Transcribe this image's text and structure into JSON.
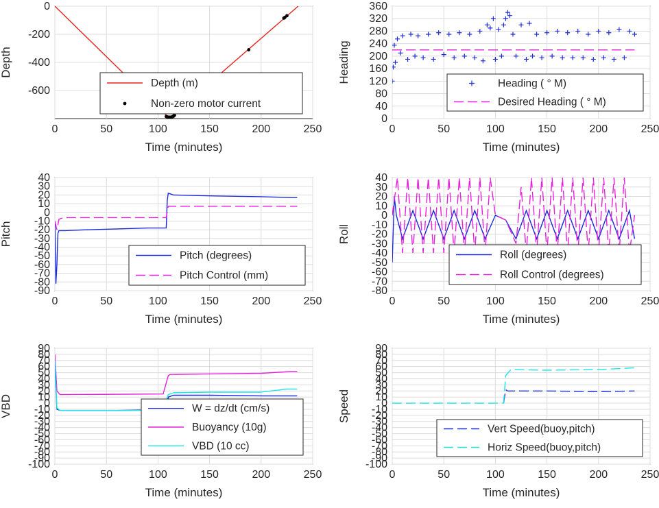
{
  "colors": {
    "red": "#e8251f",
    "blue": "#1b2bd9",
    "magenta": "#e620dc",
    "cyan": "#18e6e6",
    "black": "#000000"
  },
  "chart_data": [
    {
      "id": "depth",
      "type": "line",
      "ylabel": "Depth",
      "xlabel": "Time (minutes)",
      "xlim": [
        0,
        250
      ],
      "ylim": [
        -800,
        0
      ],
      "xticks": [
        0,
        50,
        100,
        150,
        200,
        250
      ],
      "yticks": [
        0,
        -200,
        -400,
        -600
      ],
      "grid": true,
      "legend_position": "bottom-right",
      "series": [
        {
          "name": "Depth (m)",
          "style": "line",
          "color": "red",
          "x": [
            0,
            110,
            112,
            236
          ],
          "y": [
            0,
            -790,
            -790,
            0
          ]
        },
        {
          "name": "Non-zero motor current",
          "style": "dots",
          "color": "black",
          "x": [
            108,
            109,
            110,
            111,
            112,
            113,
            114,
            115,
            116,
            188,
            222,
            223,
            225
          ],
          "y": [
            -785,
            -788,
            -790,
            -790,
            -790,
            -789,
            -787,
            -783,
            -777,
            -310,
            -85,
            -80,
            -68
          ]
        }
      ]
    },
    {
      "id": "heading",
      "type": "scatter",
      "ylabel": "Heading",
      "xlabel": "Time (minutes)",
      "xlim": [
        0,
        250
      ],
      "ylim": [
        0,
        360
      ],
      "xticks": [
        0,
        50,
        100,
        150,
        200,
        250
      ],
      "yticks": [
        0,
        40,
        80,
        120,
        160,
        200,
        240,
        280,
        320,
        360
      ],
      "grid": true,
      "legend_position": "bottom-right",
      "series": [
        {
          "name": "Heading (  ° M)",
          "style": "plus",
          "color": "blue",
          "x": [
            0,
            1,
            2,
            3,
            5,
            8,
            10,
            15,
            18,
            22,
            25,
            30,
            35,
            40,
            45,
            50,
            55,
            60,
            65,
            70,
            75,
            80,
            85,
            88,
            92,
            95,
            98,
            100,
            103,
            106,
            108,
            110,
            112,
            114,
            117,
            120,
            125,
            130,
            133,
            136,
            140,
            145,
            150,
            155,
            160,
            165,
            170,
            175,
            180,
            185,
            190,
            195,
            200,
            205,
            210,
            215,
            220,
            225,
            230,
            235
          ],
          "y": [
            120,
            165,
            235,
            180,
            255,
            210,
            265,
            190,
            270,
            200,
            265,
            195,
            270,
            190,
            275,
            205,
            270,
            195,
            275,
            200,
            270,
            195,
            280,
            185,
            300,
            290,
            320,
            190,
            285,
            200,
            300,
            320,
            340,
            330,
            270,
            200,
            300,
            190,
            305,
            200,
            270,
            195,
            275,
            200,
            280,
            195,
            275,
            195,
            280,
            195,
            270,
            190,
            280,
            195,
            275,
            190,
            285,
            195,
            280,
            270
          ]
        },
        {
          "name": "Desired Heading (    ° M)",
          "style": "dashed",
          "color": "magenta",
          "x": [
            0,
            235
          ],
          "y": [
            220,
            220
          ]
        }
      ]
    },
    {
      "id": "pitch",
      "type": "line",
      "ylabel": "Pitch",
      "xlabel": "Time (minutes)",
      "xlim": [
        0,
        250
      ],
      "ylim": [
        -90,
        40
      ],
      "xticks": [
        0,
        50,
        100,
        150,
        200,
        250
      ],
      "yticks": [
        40,
        30,
        20,
        10,
        0,
        -10,
        -20,
        -30,
        -40,
        -50,
        -60,
        -70,
        -80,
        -90
      ],
      "grid": true,
      "legend_position": "bottom-right",
      "series": [
        {
          "name": "Pitch (degrees)",
          "style": "line",
          "color": "blue",
          "x": [
            0,
            1,
            2,
            3,
            4,
            10,
            30,
            60,
            90,
            105,
            108,
            109,
            110,
            115,
            150,
            200,
            230,
            235
          ],
          "y": [
            -10,
            -82,
            -60,
            -24,
            -21,
            -21,
            -20,
            -19,
            -18,
            -18,
            -18,
            14,
            22,
            20,
            19,
            18,
            17,
            17
          ]
        },
        {
          "name": "Pitch Control (mm)",
          "style": "dashed",
          "color": "magenta",
          "x": [
            0,
            2,
            4,
            8,
            108,
            110,
            235
          ],
          "y": [
            -10,
            -20,
            -8,
            -6,
            -6,
            7,
            7
          ]
        }
      ]
    },
    {
      "id": "roll",
      "type": "line",
      "ylabel": "Roll",
      "xlabel": "Time (minutes)",
      "xlim": [
        0,
        250
      ],
      "ylim": [
        -80,
        40
      ],
      "xticks": [
        0,
        50,
        100,
        150,
        200,
        250
      ],
      "yticks": [
        40,
        30,
        20,
        10,
        0,
        -10,
        -20,
        -30,
        -40,
        -50,
        -60,
        -70,
        -80
      ],
      "grid": true,
      "legend_position": "bottom-right",
      "series": [
        {
          "name": "Roll (degrees)",
          "style": "line",
          "color": "blue",
          "x": [
            0,
            2,
            4,
            10,
            20,
            30,
            40,
            50,
            60,
            70,
            80,
            90,
            100,
            110,
            120,
            130,
            140,
            150,
            160,
            170,
            180,
            190,
            200,
            210,
            220,
            230,
            235
          ],
          "y": [
            -50,
            20,
            0,
            -25,
            5,
            -25,
            5,
            -25,
            5,
            -25,
            5,
            -25,
            0,
            -5,
            -25,
            5,
            -25,
            5,
            -25,
            5,
            -25,
            5,
            -25,
            5,
            -25,
            5,
            -25
          ]
        },
        {
          "name": "Roll Control (degrees)",
          "style": "dashed",
          "color": "magenta",
          "x": [
            0,
            5,
            10,
            15,
            20,
            25,
            30,
            35,
            40,
            45,
            50,
            55,
            60,
            65,
            70,
            75,
            80,
            85,
            90,
            95,
            100,
            110,
            120,
            125,
            130,
            135,
            140,
            145,
            150,
            155,
            160,
            165,
            170,
            175,
            180,
            185,
            190,
            195,
            200,
            205,
            210,
            215,
            220,
            225,
            230,
            235
          ],
          "y": [
            0,
            40,
            -40,
            40,
            -40,
            40,
            -40,
            40,
            -40,
            40,
            -40,
            40,
            -40,
            40,
            -40,
            40,
            -40,
            40,
            -40,
            40,
            0,
            -5,
            -30,
            30,
            -40,
            40,
            -40,
            40,
            -40,
            40,
            -40,
            40,
            -40,
            40,
            -40,
            40,
            -40,
            40,
            -40,
            40,
            -40,
            40,
            -40,
            40,
            -40,
            0
          ]
        }
      ]
    },
    {
      "id": "vbd",
      "type": "line",
      "ylabel": "VBD",
      "xlabel": "Time (minutes)",
      "xlim": [
        0,
        250
      ],
      "ylim": [
        -100,
        90
      ],
      "xticks": [
        0,
        50,
        100,
        150,
        200,
        250
      ],
      "yticks": [
        90,
        80,
        70,
        60,
        50,
        40,
        30,
        20,
        10,
        0,
        -10,
        -20,
        -30,
        -40,
        -50,
        -60,
        -70,
        -80,
        -90,
        -100
      ],
      "grid": true,
      "legend_position": "bottom-right",
      "series": [
        {
          "name": "W = dz/dt (cm/s)",
          "style": "line",
          "color": "blue",
          "x": [
            0,
            2,
            5,
            30,
            60,
            100,
            108,
            110,
            115,
            150,
            200,
            235
          ],
          "y": [
            60,
            -10,
            -12,
            -12,
            -12,
            -11,
            -11,
            10,
            13,
            13,
            12,
            12
          ]
        },
        {
          "name": "Buoyancy (10g)",
          "style": "line",
          "color": "magenta",
          "x": [
            0,
            2,
            5,
            105,
            110,
            112,
            150,
            200,
            230,
            235
          ],
          "y": [
            80,
            20,
            14,
            15,
            45,
            47,
            48,
            49,
            52,
            52
          ]
        },
        {
          "name": "VBD (10 cc)",
          "style": "line",
          "color": "cyan",
          "x": [
            0,
            2,
            5,
            105,
            110,
            115,
            150,
            200,
            225,
            235
          ],
          "y": [
            70,
            -8,
            -12,
            -12,
            14,
            17,
            18,
            18,
            23,
            23
          ]
        }
      ]
    },
    {
      "id": "speed",
      "type": "line",
      "ylabel": "Speed",
      "xlabel": "Time (minutes)",
      "xlim": [
        0,
        250
      ],
      "ylim": [
        -100,
        90
      ],
      "xticks": [
        0,
        50,
        100,
        150,
        200,
        250
      ],
      "yticks": [
        90,
        80,
        70,
        60,
        50,
        40,
        30,
        20,
        10,
        0,
        -10,
        -20,
        -30,
        -40,
        -50,
        -60,
        -70,
        -80,
        -90,
        -100
      ],
      "grid": true,
      "legend_position": "bottom-right",
      "series": [
        {
          "name": "Vert Speed(buoy,pitch)",
          "style": "dashed",
          "color": "blue",
          "x": [
            108,
            110,
            112,
            150,
            200,
            235
          ],
          "y": [
            0,
            22,
            20,
            20,
            19,
            20
          ]
        },
        {
          "name": "Horiz Speed(buoy,pitch)",
          "style": "dashed",
          "color": "cyan",
          "x": [
            0,
            105,
            108,
            110,
            115,
            150,
            200,
            235
          ],
          "y": [
            0,
            0,
            0,
            45,
            55,
            54,
            55,
            58
          ]
        }
      ]
    }
  ]
}
